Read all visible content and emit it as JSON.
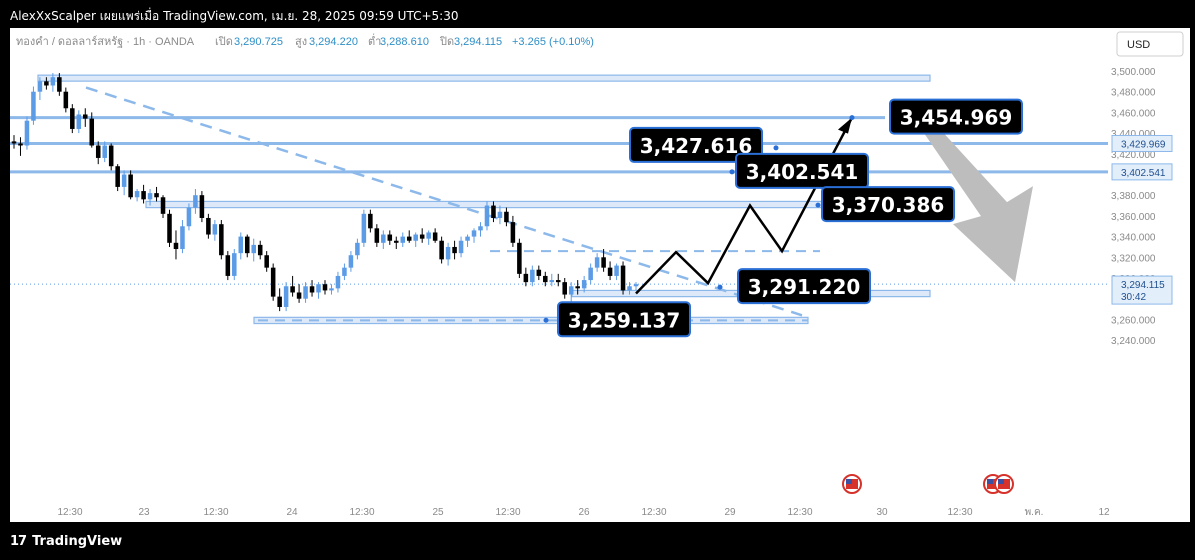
{
  "header": {
    "text": "AlexXxScalper เผยแพร่เมื่อ TradingView.com, เม.ย. 28, 2025 09:59 UTC+5:30"
  },
  "symbol_info": {
    "name": "ทองคำ / ดอลลาร์สหรัฐ · 1h · OANDA",
    "open_label": "เปิด",
    "open": "3,290.725",
    "high_label": "สูง",
    "high": "3,294.220",
    "low_label": "ต่ำ",
    "low": "3,288.610",
    "close_label": "ปิด",
    "close": "3,294.115",
    "change": "+3.265 (+0.10%)"
  },
  "currency_button": "USD",
  "footer": {
    "brand": "TradingView"
  },
  "colors": {
    "up": "#5c9ce6",
    "down": "#000000",
    "level": "#8cb8ea",
    "zone_fill": "#dde9f9",
    "forecast_arrow": "#bdbdbd",
    "callout_bg": "#000000",
    "callout_border": "#2a6fd6"
  },
  "chart_data": {
    "type": "candlestick",
    "instrument": "ทองคำ / ดอลลาร์สหรัฐ",
    "timeframe": "1h",
    "ylim": [
      3230,
      3520
    ],
    "y_ticks": [
      "3,500.000",
      "3,480.000",
      "3,460.000",
      "3,440.000",
      "3,420.000",
      "3,380.000",
      "3,360.000",
      "3,340.000",
      "3,320.000",
      "3,300.000",
      "3,260.000",
      "3,240.000"
    ],
    "x_ticks": [
      "12:30",
      "23",
      "12:30",
      "24",
      "12:30",
      "25",
      "12:30",
      "26",
      "12:30",
      "29",
      "12:30",
      "30",
      "12:30",
      "พ.ค.",
      "12"
    ],
    "price_tags": [
      {
        "value": "3,429.969",
        "y": 3429.969
      },
      {
        "value": "3,402.541",
        "y": 3402.541
      }
    ],
    "last_price": {
      "value": "3,294.115",
      "countdown": "30:42",
      "y": 3294.115
    },
    "candles": [
      {
        "o": 3432,
        "h": 3438,
        "l": 3425,
        "c": 3430
      },
      {
        "o": 3430,
        "h": 3436,
        "l": 3418,
        "c": 3428
      },
      {
        "o": 3428,
        "h": 3456,
        "l": 3424,
        "c": 3452
      },
      {
        "o": 3452,
        "h": 3485,
        "l": 3448,
        "c": 3480
      },
      {
        "o": 3480,
        "h": 3494,
        "l": 3472,
        "c": 3490
      },
      {
        "o": 3490,
        "h": 3494,
        "l": 3482,
        "c": 3486
      },
      {
        "o": 3486,
        "h": 3498,
        "l": 3480,
        "c": 3494
      },
      {
        "o": 3494,
        "h": 3498,
        "l": 3476,
        "c": 3480
      },
      {
        "o": 3480,
        "h": 3484,
        "l": 3460,
        "c": 3464
      },
      {
        "o": 3464,
        "h": 3468,
        "l": 3440,
        "c": 3444
      },
      {
        "o": 3444,
        "h": 3462,
        "l": 3440,
        "c": 3458
      },
      {
        "o": 3458,
        "h": 3464,
        "l": 3446,
        "c": 3454
      },
      {
        "o": 3454,
        "h": 3460,
        "l": 3426,
        "c": 3428
      },
      {
        "o": 3428,
        "h": 3432,
        "l": 3410,
        "c": 3416
      },
      {
        "o": 3416,
        "h": 3432,
        "l": 3412,
        "c": 3428
      },
      {
        "o": 3428,
        "h": 3430,
        "l": 3404,
        "c": 3408
      },
      {
        "o": 3408,
        "h": 3410,
        "l": 3384,
        "c": 3388
      },
      {
        "o": 3388,
        "h": 3404,
        "l": 3380,
        "c": 3400
      },
      {
        "o": 3400,
        "h": 3404,
        "l": 3376,
        "c": 3378
      },
      {
        "o": 3378,
        "h": 3386,
        "l": 3374,
        "c": 3384
      },
      {
        "o": 3384,
        "h": 3390,
        "l": 3372,
        "c": 3376
      },
      {
        "o": 3376,
        "h": 3386,
        "l": 3370,
        "c": 3382
      },
      {
        "o": 3382,
        "h": 3388,
        "l": 3374,
        "c": 3378
      },
      {
        "o": 3378,
        "h": 3380,
        "l": 3358,
        "c": 3362
      },
      {
        "o": 3362,
        "h": 3366,
        "l": 3330,
        "c": 3334
      },
      {
        "o": 3334,
        "h": 3346,
        "l": 3318,
        "c": 3328
      },
      {
        "o": 3328,
        "h": 3356,
        "l": 3324,
        "c": 3350
      },
      {
        "o": 3350,
        "h": 3372,
        "l": 3346,
        "c": 3368
      },
      {
        "o": 3368,
        "h": 3386,
        "l": 3362,
        "c": 3380
      },
      {
        "o": 3380,
        "h": 3384,
        "l": 3354,
        "c": 3358
      },
      {
        "o": 3358,
        "h": 3362,
        "l": 3338,
        "c": 3342
      },
      {
        "o": 3342,
        "h": 3356,
        "l": 3336,
        "c": 3352
      },
      {
        "o": 3352,
        "h": 3356,
        "l": 3318,
        "c": 3322
      },
      {
        "o": 3322,
        "h": 3326,
        "l": 3298,
        "c": 3302
      },
      {
        "o": 3302,
        "h": 3328,
        "l": 3298,
        "c": 3324
      },
      {
        "o": 3324,
        "h": 3344,
        "l": 3318,
        "c": 3340
      },
      {
        "o": 3340,
        "h": 3342,
        "l": 3320,
        "c": 3324
      },
      {
        "o": 3324,
        "h": 3338,
        "l": 3316,
        "c": 3332
      },
      {
        "o": 3332,
        "h": 3336,
        "l": 3318,
        "c": 3322
      },
      {
        "o": 3322,
        "h": 3326,
        "l": 3306,
        "c": 3310
      },
      {
        "o": 3310,
        "h": 3314,
        "l": 3278,
        "c": 3282
      },
      {
        "o": 3282,
        "h": 3290,
        "l": 3268,
        "c": 3272
      },
      {
        "o": 3272,
        "h": 3296,
        "l": 3268,
        "c": 3292
      },
      {
        "o": 3292,
        "h": 3302,
        "l": 3282,
        "c": 3286
      },
      {
        "o": 3286,
        "h": 3294,
        "l": 3276,
        "c": 3280
      },
      {
        "o": 3280,
        "h": 3296,
        "l": 3276,
        "c": 3292
      },
      {
        "o": 3292,
        "h": 3298,
        "l": 3282,
        "c": 3286
      },
      {
        "o": 3286,
        "h": 3296,
        "l": 3280,
        "c": 3294
      },
      {
        "o": 3294,
        "h": 3298,
        "l": 3284,
        "c": 3288
      },
      {
        "o": 3288,
        "h": 3294,
        "l": 3284,
        "c": 3290
      },
      {
        "o": 3290,
        "h": 3306,
        "l": 3286,
        "c": 3302
      },
      {
        "o": 3302,
        "h": 3314,
        "l": 3298,
        "c": 3310
      },
      {
        "o": 3310,
        "h": 3326,
        "l": 3306,
        "c": 3322
      },
      {
        "o": 3322,
        "h": 3338,
        "l": 3318,
        "c": 3334
      },
      {
        "o": 3334,
        "h": 3366,
        "l": 3330,
        "c": 3362
      },
      {
        "o": 3362,
        "h": 3366,
        "l": 3344,
        "c": 3348
      },
      {
        "o": 3348,
        "h": 3352,
        "l": 3330,
        "c": 3334
      },
      {
        "o": 3334,
        "h": 3346,
        "l": 3328,
        "c": 3342
      },
      {
        "o": 3342,
        "h": 3346,
        "l": 3332,
        "c": 3336
      },
      {
        "o": 3336,
        "h": 3340,
        "l": 3328,
        "c": 3334
      },
      {
        "o": 3334,
        "h": 3344,
        "l": 3330,
        "c": 3340
      },
      {
        "o": 3340,
        "h": 3346,
        "l": 3334,
        "c": 3336
      },
      {
        "o": 3336,
        "h": 3344,
        "l": 3330,
        "c": 3342
      },
      {
        "o": 3342,
        "h": 3348,
        "l": 3334,
        "c": 3338
      },
      {
        "o": 3338,
        "h": 3346,
        "l": 3332,
        "c": 3344
      },
      {
        "o": 3344,
        "h": 3348,
        "l": 3334,
        "c": 3336
      },
      {
        "o": 3336,
        "h": 3340,
        "l": 3314,
        "c": 3318
      },
      {
        "o": 3318,
        "h": 3334,
        "l": 3312,
        "c": 3330
      },
      {
        "o": 3330,
        "h": 3336,
        "l": 3318,
        "c": 3324
      },
      {
        "o": 3324,
        "h": 3340,
        "l": 3320,
        "c": 3336
      },
      {
        "o": 3336,
        "h": 3342,
        "l": 3330,
        "c": 3340
      },
      {
        "o": 3340,
        "h": 3348,
        "l": 3334,
        "c": 3346
      },
      {
        "o": 3346,
        "h": 3354,
        "l": 3340,
        "c": 3350
      },
      {
        "o": 3350,
        "h": 3374,
        "l": 3346,
        "c": 3370
      },
      {
        "o": 3370,
        "h": 3374,
        "l": 3354,
        "c": 3358
      },
      {
        "o": 3358,
        "h": 3370,
        "l": 3352,
        "c": 3364
      },
      {
        "o": 3364,
        "h": 3368,
        "l": 3350,
        "c": 3354
      },
      {
        "o": 3354,
        "h": 3360,
        "l": 3330,
        "c": 3334
      },
      {
        "o": 3334,
        "h": 3338,
        "l": 3300,
        "c": 3304
      },
      {
        "o": 3304,
        "h": 3310,
        "l": 3292,
        "c": 3296
      },
      {
        "o": 3296,
        "h": 3312,
        "l": 3292,
        "c": 3308
      },
      {
        "o": 3308,
        "h": 3312,
        "l": 3298,
        "c": 3302
      },
      {
        "o": 3302,
        "h": 3306,
        "l": 3292,
        "c": 3296
      },
      {
        "o": 3296,
        "h": 3304,
        "l": 3292,
        "c": 3298
      },
      {
        "o": 3298,
        "h": 3304,
        "l": 3292,
        "c": 3296
      },
      {
        "o": 3296,
        "h": 3300,
        "l": 3280,
        "c": 3284
      },
      {
        "o": 3284,
        "h": 3296,
        "l": 3276,
        "c": 3292
      },
      {
        "o": 3292,
        "h": 3298,
        "l": 3284,
        "c": 3290
      },
      {
        "o": 3290,
        "h": 3302,
        "l": 3286,
        "c": 3298
      },
      {
        "o": 3298,
        "h": 3314,
        "l": 3294,
        "c": 3310
      },
      {
        "o": 3310,
        "h": 3324,
        "l": 3306,
        "c": 3320
      },
      {
        "o": 3320,
        "h": 3328,
        "l": 3306,
        "c": 3310
      },
      {
        "o": 3310,
        "h": 3316,
        "l": 3298,
        "c": 3302
      },
      {
        "o": 3302,
        "h": 3314,
        "l": 3298,
        "c": 3312
      },
      {
        "o": 3312,
        "h": 3316,
        "l": 3284,
        "c": 3288
      },
      {
        "o": 3288,
        "h": 3296,
        "l": 3284,
        "c": 3292
      },
      {
        "o": 3292,
        "h": 3296,
        "l": 3288,
        "c": 3294
      }
    ],
    "levels": [
      {
        "y": 3454.969,
        "label": "3,454.969"
      },
      {
        "y": 3429.969
      },
      {
        "y": 3402.541,
        "label": "3,402.541"
      }
    ],
    "zones": [
      {
        "y_top": 3496,
        "y_bottom": 3491
      },
      {
        "y_top": 3374,
        "y_bottom": 3368
      },
      {
        "y_top": 3288,
        "y_bottom": 3282
      },
      {
        "y_top": 3262,
        "y_bottom": 3256
      }
    ],
    "annotations": [
      {
        "text": "3,454.969",
        "y": 3454.969
      },
      {
        "text": "3,427.616",
        "y": 3427.616
      },
      {
        "text": "3,402.541",
        "y": 3402.541
      },
      {
        "text": "3,370.386",
        "y": 3370.386
      },
      {
        "text": "3,291.220",
        "y": 3291.22
      },
      {
        "text": "3,259.137",
        "y": 3259.137
      }
    ],
    "forecast_path": [
      3285,
      3325,
      3295,
      3370,
      3326,
      3455
    ],
    "forecast_arrow": {
      "from": 3440,
      "to": 3296
    }
  }
}
